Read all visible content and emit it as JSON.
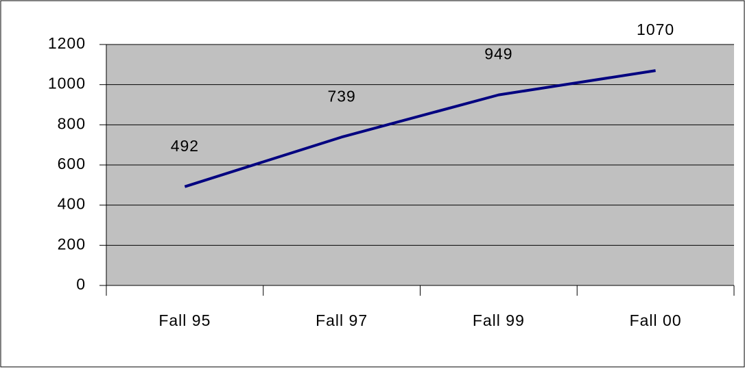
{
  "chart_data": {
    "type": "line",
    "categories": [
      "Fall 95",
      "Fall 97",
      "Fall 99",
      "Fall 00"
    ],
    "series": [
      {
        "color": "#000080",
        "values": [
          492,
          739,
          949,
          1070
        ]
      }
    ],
    "ylim": [
      0,
      1200
    ],
    "yticks": [
      0,
      200,
      400,
      600,
      800,
      1000,
      1200
    ],
    "grid": true,
    "plot_background": "#c0c0c0"
  }
}
